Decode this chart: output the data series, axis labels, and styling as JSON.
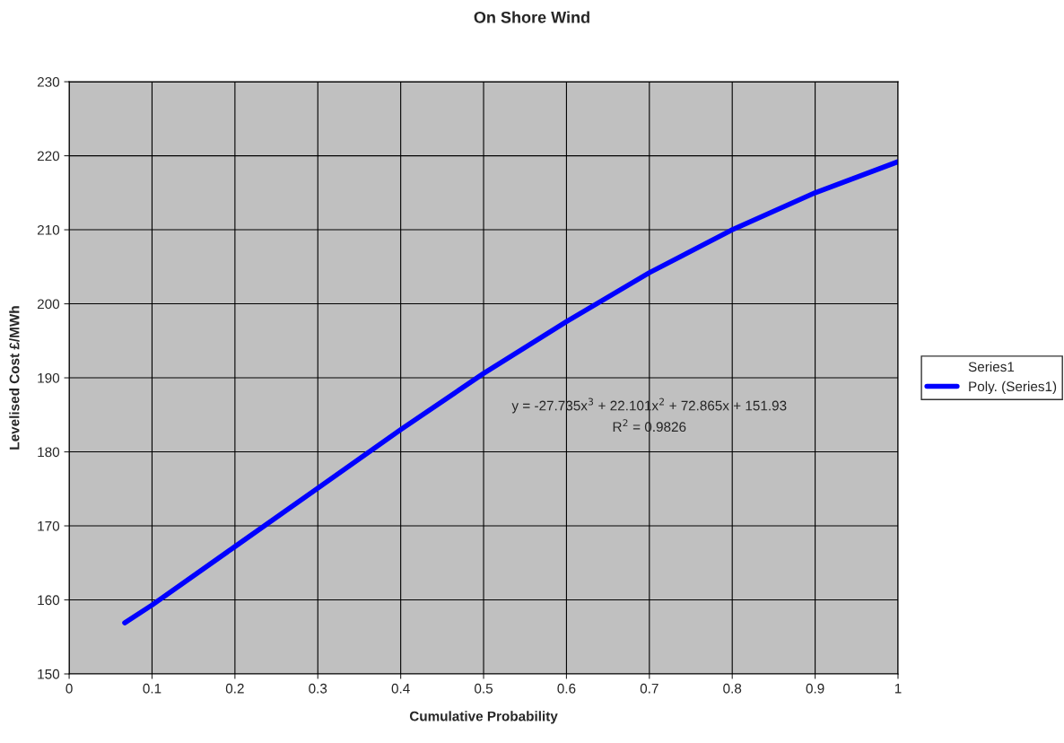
{
  "chart_data": {
    "type": "line",
    "title": "On Shore Wind",
    "xlabel": "Cumulative Probability",
    "ylabel": "Levelised Cost £/MWh",
    "series": [
      {
        "name": "Series1",
        "type": "scatter"
      },
      {
        "name": "Poly. (Series1)",
        "color": "#0000ff",
        "x": [
          0.067,
          0.1,
          0.2,
          0.3,
          0.4,
          0.5,
          0.6,
          0.7,
          0.8,
          0.9,
          1.0
        ],
        "values": [
          156.9,
          159.3,
          167.2,
          175.1,
          183.0,
          190.6,
          197.6,
          204.2,
          210.0,
          215.0,
          219.2
        ]
      }
    ],
    "annotations": [
      "y = -27.735x$^{3}$ + 22.101x$^{2}$ + 72.865x + 151.93",
      "R$^{2}$ = 0.9826"
    ],
    "xlim": [
      0,
      1
    ],
    "xticks": [
      0,
      0.1,
      0.2,
      0.3,
      0.4,
      0.5,
      0.6,
      0.7,
      0.8,
      0.9,
      1
    ],
    "ylim": [
      150,
      230
    ],
    "yticks": [
      150,
      160,
      170,
      180,
      190,
      200,
      210,
      220,
      230
    ],
    "grid": true,
    "legend": "right"
  }
}
